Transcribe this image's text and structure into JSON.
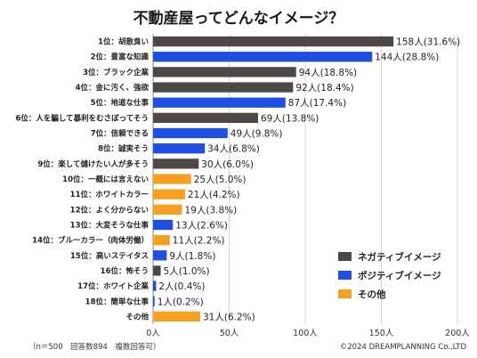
{
  "chart_data": {
    "type": "bar",
    "orientation": "horizontal",
    "title": "不動産屋ってどんなイメージ？",
    "categories": [
      "1位：胡散臭い",
      "2位：豊富な知識",
      "3位：ブラック企業",
      "4位：金に汚く、強欲",
      "5位：地道な仕事",
      "6位：人を騙して暴利をむさぼってそう",
      "7位：信頼できる",
      "8位：誠実そう",
      "9位：楽して儲けたい人が多そう",
      "10位：一概には言えない",
      "11位：ホワイトカラー",
      "12位：よく分からない",
      "13位：大変そうな仕事",
      "14位：ブルーカラー（肉体労働）",
      "15位：高いステイタス",
      "16位：怖そう",
      "17位：ホワイト企業",
      "18位：簡単な仕事",
      "その他"
    ],
    "values": [
      158,
      144,
      94,
      92,
      87,
      69,
      49,
      34,
      30,
      25,
      21,
      19,
      13,
      11,
      9,
      5,
      2,
      1,
      31
    ],
    "value_labels": [
      "158人(31.6%)",
      "144人(28.8%)",
      "94人(18.8%)",
      "92人(18.4%)",
      "87人(17.4%)",
      "69人(13.8%)",
      "49人(9.8%)",
      "34人(6.8%)",
      "30人(6.0%)",
      "25人(5.0%)",
      "21人(4.2%)",
      "19人(3.8%)",
      "13人(2.6%)",
      "11人(2.2%)",
      "9人(1.8%)",
      "5人(1.0%)",
      "2人(0.4%)",
      "1人(0.2%)",
      "31人(6.2%)"
    ],
    "groups": [
      "negative",
      "positive",
      "negative",
      "negative",
      "positive",
      "negative",
      "positive",
      "positive",
      "negative",
      "other",
      "other",
      "other",
      "positive",
      "other",
      "positive",
      "negative",
      "positive",
      "positive",
      "other"
    ],
    "series": [
      {
        "key": "negative",
        "name": "ネガティブイメージ",
        "color": "#4d4845"
      },
      {
        "key": "positive",
        "name": "ポジティブイメージ",
        "color": "#1f4fe0"
      },
      {
        "key": "other",
        "name": "その他",
        "color": "#f5a01f"
      }
    ],
    "xlim": [
      0,
      200
    ],
    "xticks": [
      "0人",
      "50人",
      "100人",
      "150人",
      "200人"
    ],
    "xtick_values": [
      0,
      50,
      100,
      150,
      200
    ],
    "grid": true,
    "legend_position": "bottom-right"
  },
  "footer": {
    "note": "（n＝500　回答数894　複数回答可）",
    "copyright": "©2024 DREAMPLANNING Co.,LTD"
  }
}
